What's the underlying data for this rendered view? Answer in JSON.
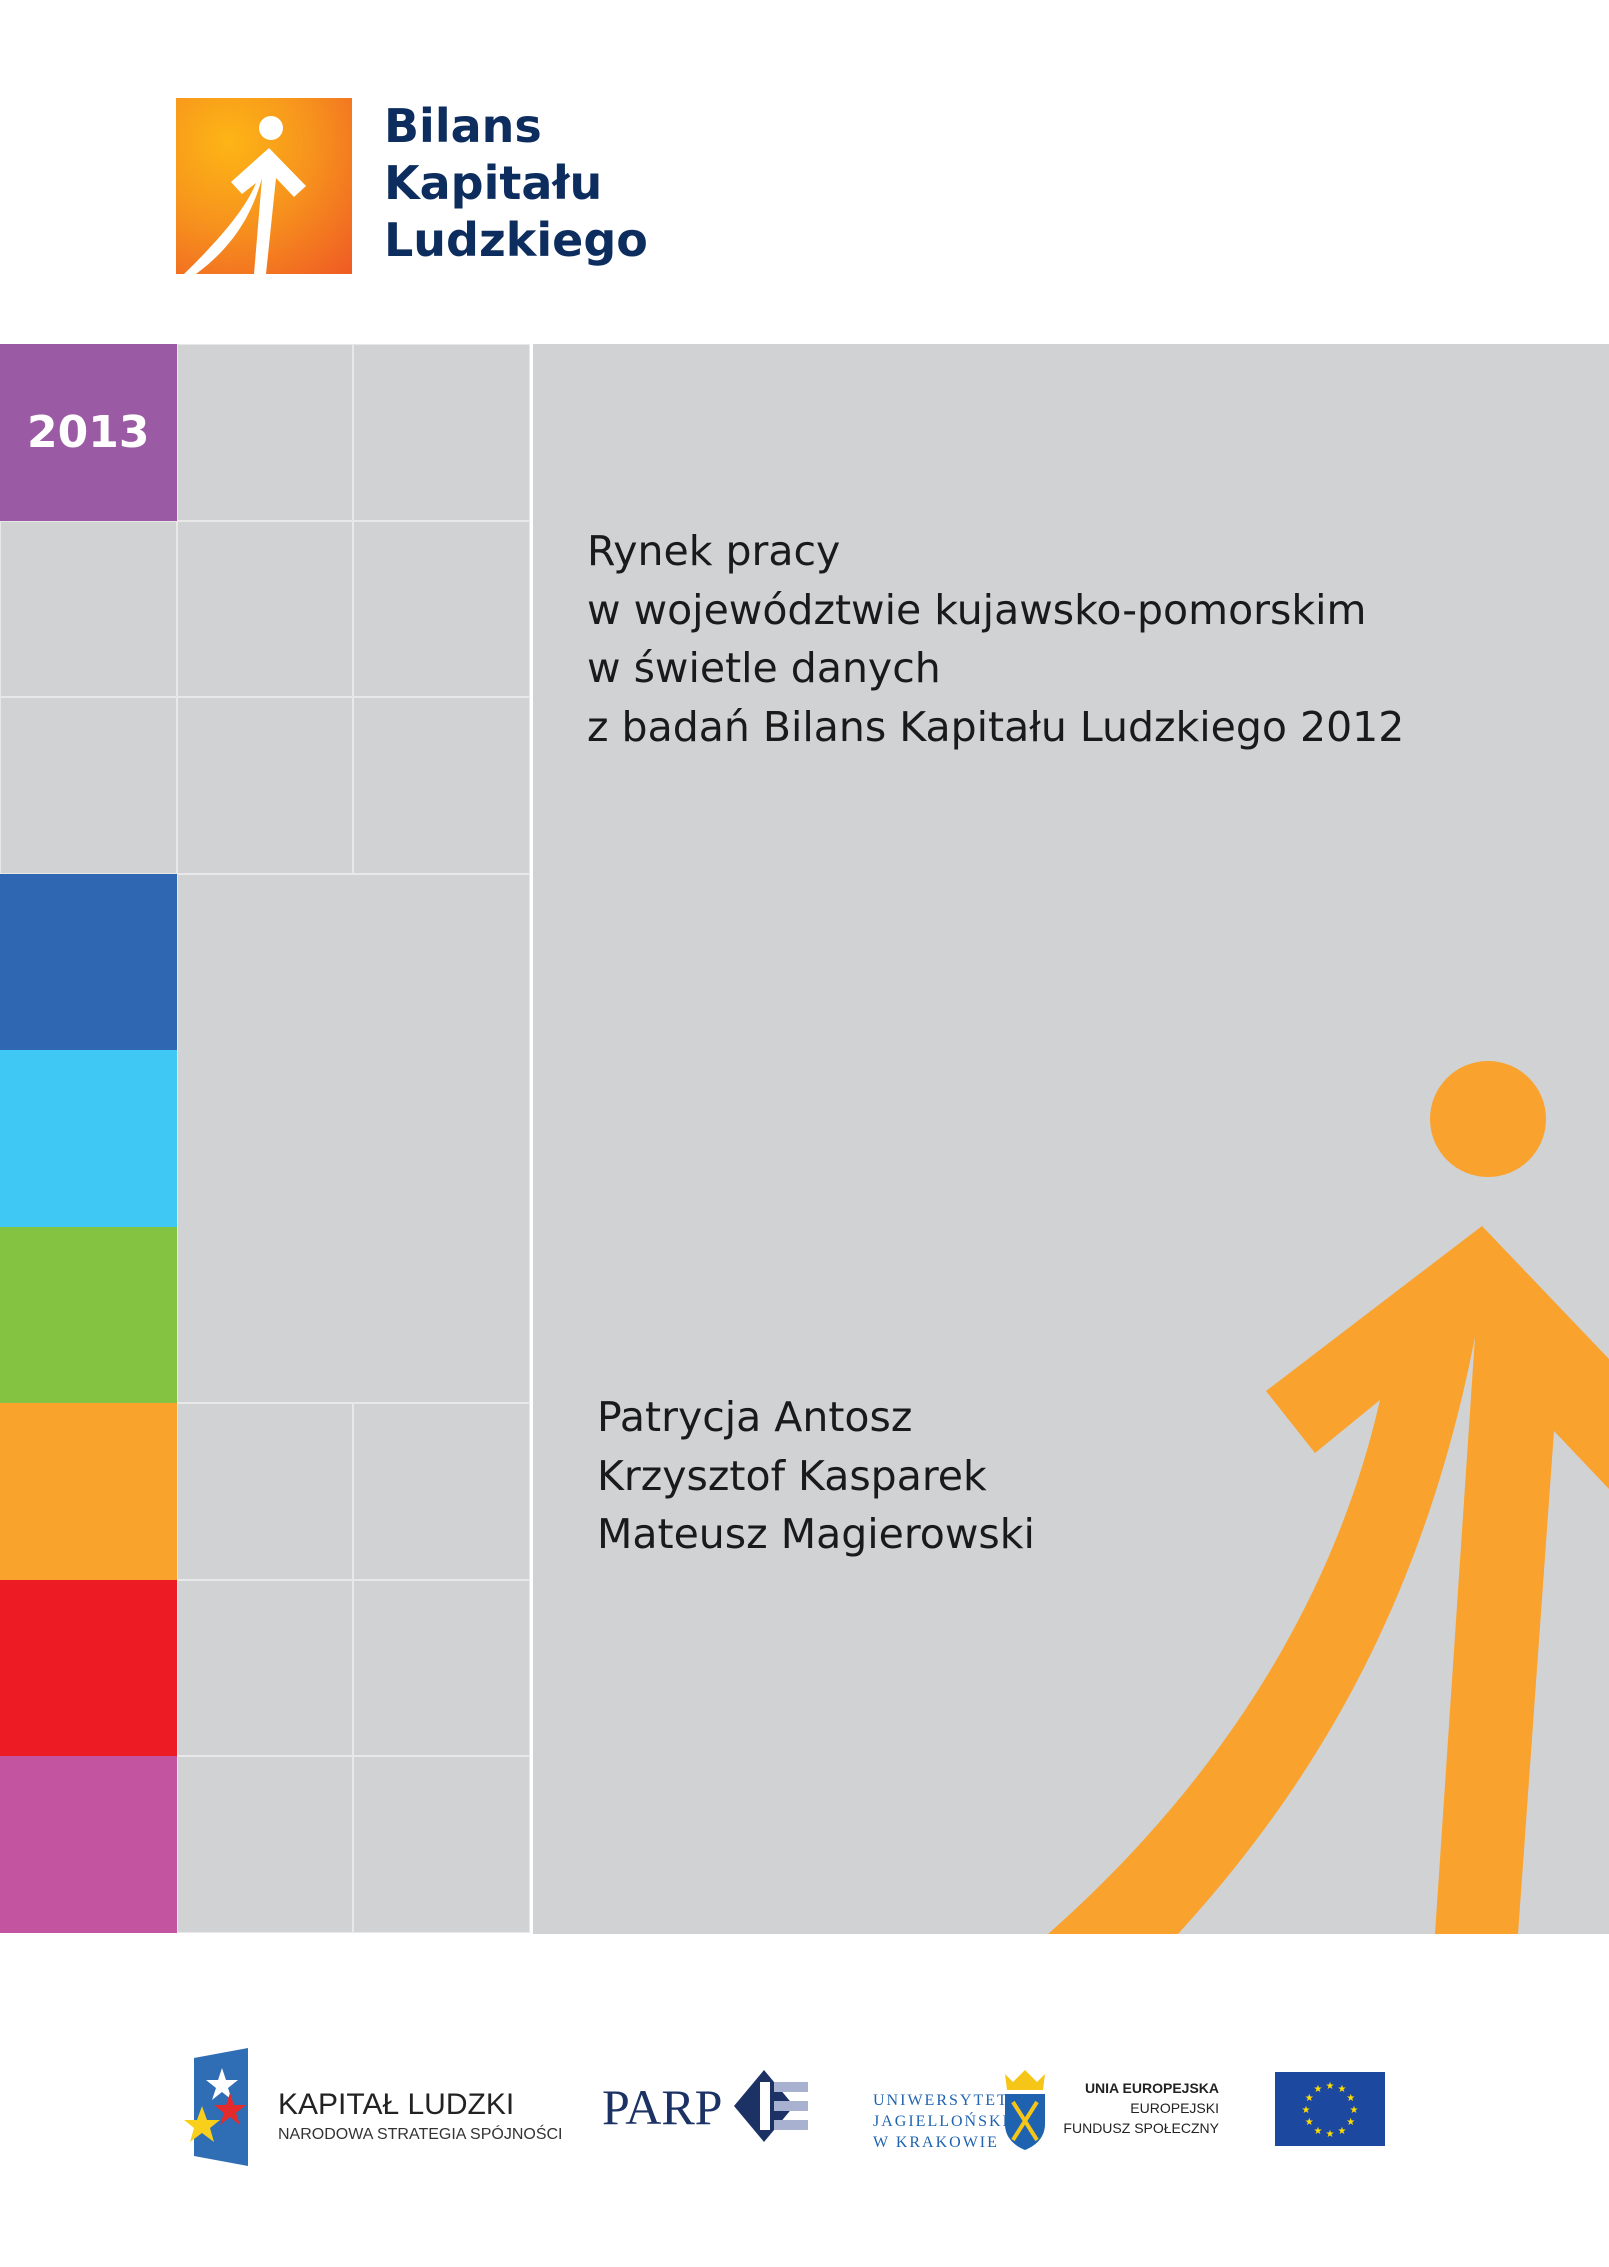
{
  "logo": {
    "lines": [
      "Bilans",
      "Kapitału",
      "Ludzkiego"
    ],
    "colors": {
      "orange": "#f7941d",
      "navy": "#0c2d5e"
    }
  },
  "year": "2013",
  "title_lines": [
    "Rynek pracy",
    "w województwie kujawsko-pomorskim",
    "w świetle danych",
    "z badań Bilans Kapitału Ludzkiego 2012"
  ],
  "authors": [
    "Patrycja Antosz",
    "Krzysztof Kasparek",
    "Mateusz Magierowski"
  ],
  "color_tiles": [
    "#9b5ba4",
    "#3067b3",
    "#40c8f4",
    "#84c341",
    "#f9a22c",
    "#ed1c24",
    "#c355a0"
  ],
  "footer": {
    "kapital": {
      "title": "KAPITAŁ LUDZKI",
      "subtitle": "NARODOWA STRATEGIA SPÓJNOŚCI"
    },
    "parp": "PARP",
    "uj": [
      "UNIWERSYTET",
      "JAGIELLOŃSKI",
      "W KRAKOWIE"
    ],
    "ue": {
      "title": "UNIA EUROPEJSKA",
      "line2": "EUROPEJSKI",
      "line3": "FUNDUSZ SPOŁECZNY"
    }
  }
}
